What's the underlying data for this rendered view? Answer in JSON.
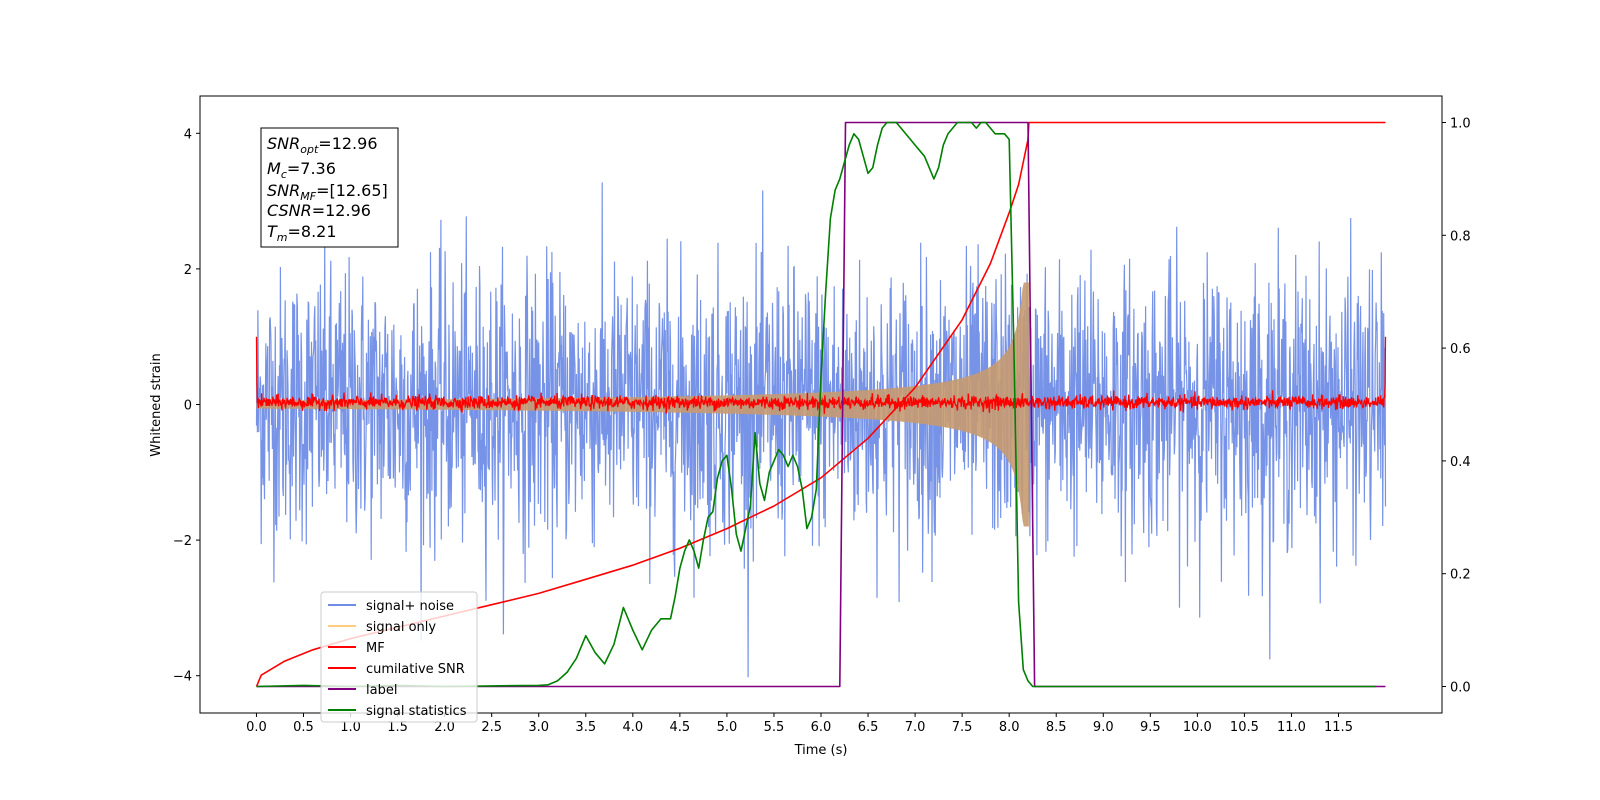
{
  "chart_data": {
    "type": "line",
    "xlabel": "Time (s)",
    "ylabel": "Whitened strain",
    "xlim": [
      -0.6,
      12.6
    ],
    "ylim": [
      -4.55,
      4.55
    ],
    "y2lim": [
      -0.047,
      1.047
    ],
    "x_ticks": [
      "0.0",
      "0.5",
      "1.0",
      "1.5",
      "2.0",
      "2.5",
      "3.0",
      "3.5",
      "4.0",
      "4.5",
      "5.0",
      "5.5",
      "6.0",
      "6.5",
      "7.0",
      "7.5",
      "8.0",
      "8.5",
      "9.0",
      "9.5",
      "10.0",
      "10.5",
      "11.0",
      "11.5"
    ],
    "y_ticks": [
      "4",
      "2",
      "0",
      "−2",
      "−4"
    ],
    "y2_ticks": [
      "1.0",
      "0.8",
      "0.6",
      "0.4",
      "0.2",
      "0.0"
    ],
    "grid": false,
    "legend_position": "lower-left",
    "legend": [
      "signal+ noise",
      "signal only",
      "MF",
      "cumilative SNR",
      "label",
      "signal statistics"
    ],
    "annotation": {
      "snr_opt": {
        "name": "SNR",
        "sub": "opt",
        "value": "=12.96"
      },
      "mc": {
        "name": "M",
        "sub": "c",
        "value": "=7.36"
      },
      "snr_mf": {
        "name": "SNR",
        "sub": "MF",
        "value": "=[12.65]"
      },
      "csnr": {
        "name": "CSNR",
        "sub": "",
        "value": "=12.96"
      },
      "tm": {
        "name": "T",
        "sub": "m",
        "value": "=8.21"
      }
    },
    "series": [
      {
        "name": "signal+ noise",
        "axis": "left",
        "color": "#6f8de6",
        "x_range": [
          0,
          12.0
        ],
        "amplitude_sd": 1.0
      },
      {
        "name": "signal only",
        "axis": "left",
        "color": "#ffcc80",
        "x_range": [
          0,
          8.21
        ],
        "envelope": "chirp",
        "peak_amplitude": 1.8
      },
      {
        "name": "MF",
        "axis": "left",
        "color": "#ff0000",
        "x_range": [
          0,
          12.0
        ],
        "amplitude_sd": 0.05,
        "endpoints": [
          1.0,
          1.0
        ]
      },
      {
        "name": "cumilative SNR",
        "axis": "right",
        "color": "#ff0000",
        "x": [
          0,
          0.05,
          0.3,
          0.6,
          1.0,
          1.5,
          2.0,
          2.5,
          3.0,
          3.5,
          4.0,
          4.5,
          5.0,
          5.5,
          6.0,
          6.5,
          7.0,
          7.5,
          7.8,
          8.0,
          8.1,
          8.15,
          8.2,
          8.21,
          12.0
        ],
        "y": [
          0.0,
          0.02,
          0.045,
          0.065,
          0.085,
          0.105,
          0.125,
          0.145,
          0.165,
          0.19,
          0.215,
          0.245,
          0.28,
          0.32,
          0.37,
          0.44,
          0.53,
          0.65,
          0.75,
          0.84,
          0.89,
          0.93,
          0.97,
          1.0,
          1.0
        ]
      },
      {
        "name": "label",
        "axis": "right",
        "color": "#800080",
        "x": [
          0,
          6.2,
          6.26,
          8.2,
          8.27,
          12.0
        ],
        "y": [
          0,
          0,
          1,
          1,
          0,
          0
        ]
      },
      {
        "name": "signal statistics",
        "axis": "right",
        "color": "#008000",
        "x": [
          0,
          0.5,
          1.0,
          1.5,
          2.0,
          2.5,
          3.0,
          3.1,
          3.2,
          3.3,
          3.4,
          3.5,
          3.6,
          3.7,
          3.8,
          3.9,
          4.0,
          4.1,
          4.2,
          4.3,
          4.4,
          4.45,
          4.5,
          4.55,
          4.6,
          4.65,
          4.7,
          4.75,
          4.8,
          4.85,
          4.9,
          4.95,
          5.0,
          5.05,
          5.1,
          5.15,
          5.2,
          5.25,
          5.3,
          5.35,
          5.4,
          5.45,
          5.5,
          5.55,
          5.6,
          5.65,
          5.7,
          5.75,
          5.8,
          5.85,
          5.9,
          5.95,
          6.0,
          6.05,
          6.1,
          6.15,
          6.2,
          6.25,
          6.3,
          6.35,
          6.4,
          6.45,
          6.5,
          6.55,
          6.6,
          6.65,
          6.7,
          6.75,
          6.8,
          6.85,
          6.9,
          6.95,
          7.0,
          7.05,
          7.1,
          7.15,
          7.2,
          7.25,
          7.3,
          7.35,
          7.4,
          7.45,
          7.5,
          7.55,
          7.6,
          7.65,
          7.7,
          7.75,
          7.8,
          7.85,
          7.9,
          7.95,
          8.0,
          8.05,
          8.1,
          8.15,
          8.2,
          8.25,
          8.3,
          8.4,
          8.5,
          9.0,
          10.0,
          11.0,
          11.9
        ],
        "y": [
          0.0,
          0.002,
          0.0,
          0.002,
          0.0,
          0.001,
          0.002,
          0.003,
          0.01,
          0.025,
          0.05,
          0.09,
          0.06,
          0.04,
          0.075,
          0.14,
          0.1,
          0.065,
          0.1,
          0.12,
          0.12,
          0.16,
          0.21,
          0.24,
          0.26,
          0.24,
          0.21,
          0.26,
          0.3,
          0.31,
          0.37,
          0.4,
          0.41,
          0.35,
          0.27,
          0.24,
          0.28,
          0.32,
          0.45,
          0.36,
          0.33,
          0.38,
          0.4,
          0.42,
          0.41,
          0.39,
          0.41,
          0.39,
          0.35,
          0.28,
          0.3,
          0.35,
          0.55,
          0.7,
          0.83,
          0.88,
          0.9,
          0.93,
          0.96,
          0.98,
          0.97,
          0.94,
          0.91,
          0.92,
          0.96,
          0.99,
          1.0,
          1.0,
          1.0,
          0.99,
          0.98,
          0.97,
          0.96,
          0.95,
          0.94,
          0.92,
          0.9,
          0.92,
          0.96,
          0.98,
          0.99,
          1.0,
          1.0,
          1.0,
          1.0,
          0.99,
          1.0,
          1.0,
          0.99,
          0.98,
          0.98,
          0.98,
          0.97,
          0.6,
          0.15,
          0.03,
          0.01,
          0.0,
          0.0,
          0.0,
          0.0,
          0.0,
          0.0,
          0.0,
          0.0
        ]
      }
    ]
  }
}
